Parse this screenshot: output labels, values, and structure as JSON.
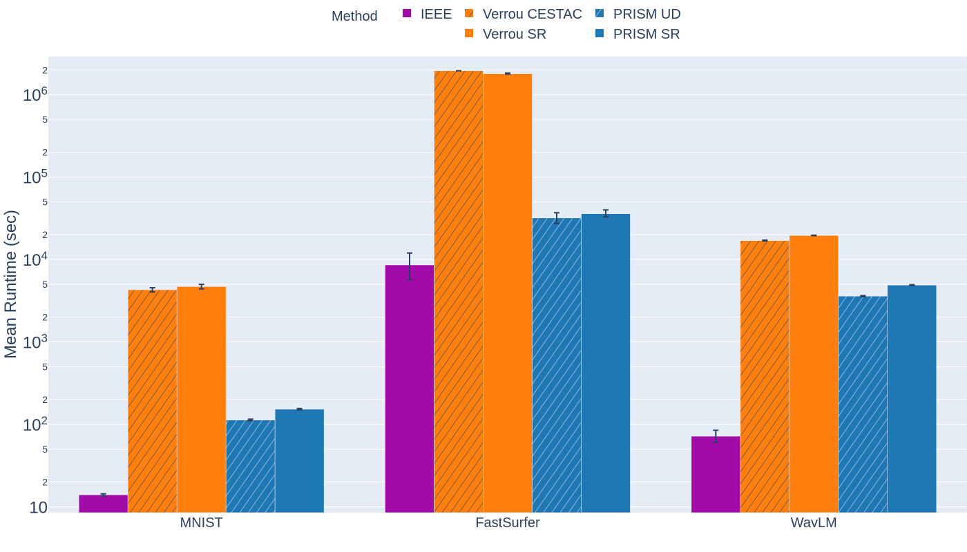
{
  "chart_data": {
    "type": "bar",
    "log_y": true,
    "ylabel": "Mean Runtime (sec)",
    "xlabel": "",
    "title": "",
    "categories": [
      "MNIST",
      "FastSurfer",
      "WavLM"
    ],
    "ylim": [
      8.5,
      2900000
    ],
    "legend": {
      "title": "Method",
      "placement": "top-center",
      "rows": [
        [
          "IEEE",
          "Verrou CESTAC",
          "PRISM UD"
        ],
        [
          "",
          "Verrou SR",
          "PRISM SR"
        ]
      ]
    },
    "series": [
      {
        "name": "IEEE",
        "color": "#a20ba8",
        "hatched": false,
        "values": [
          14,
          8600,
          72
        ],
        "err_low": [
          13.6,
          5700,
          61
        ],
        "err_high": [
          14.4,
          12000,
          85
        ]
      },
      {
        "name": "Verrou CESTAC",
        "color": "#ff7f0e",
        "hatched": true,
        "values": [
          4300,
          1950000,
          17000
        ],
        "err_low": [
          4050,
          1950000,
          16800
        ],
        "err_high": [
          4550,
          1955000,
          17200
        ]
      },
      {
        "name": "Verrou SR",
        "color": "#ff7f0e",
        "hatched": false,
        "values": [
          4700,
          1800000,
          19600
        ],
        "err_low": [
          4400,
          1780000,
          19500
        ],
        "err_high": [
          5000,
          1830000,
          19750
        ]
      },
      {
        "name": "PRISM UD",
        "color": "#1f77b4",
        "hatched": true,
        "values": [
          113,
          32000,
          3600
        ],
        "err_low": [
          111,
          27500,
          3550
        ],
        "err_high": [
          116,
          37000,
          3650
        ]
      },
      {
        "name": "PRISM SR",
        "color": "#1f77b4",
        "hatched": false,
        "values": [
          153,
          36000,
          4900
        ],
        "err_low": [
          150,
          33000,
          4850
        ],
        "err_high": [
          156,
          40000,
          4950
        ]
      }
    ],
    "y_major_ticks": [
      {
        "value": 10,
        "base": "10",
        "exp": ""
      },
      {
        "value": 100,
        "base": "10",
        "exp": "2"
      },
      {
        "value": 1000,
        "base": "10",
        "exp": "3"
      },
      {
        "value": 10000,
        "base": "10",
        "exp": "4"
      },
      {
        "value": 100000,
        "base": "10",
        "exp": "5"
      },
      {
        "value": 1000000,
        "base": "10",
        "exp": "6"
      }
    ],
    "y_minor_ticks": [
      {
        "value": 20,
        "label": "2"
      },
      {
        "value": 50,
        "label": "5"
      },
      {
        "value": 200,
        "label": "2"
      },
      {
        "value": 500,
        "label": "5"
      },
      {
        "value": 2000,
        "label": "2"
      },
      {
        "value": 5000,
        "label": "5"
      },
      {
        "value": 20000,
        "label": "2"
      },
      {
        "value": 50000,
        "label": "5"
      },
      {
        "value": 200000,
        "label": "2"
      },
      {
        "value": 500000,
        "label": "5"
      },
      {
        "value": 2000000,
        "label": "2"
      }
    ],
    "grid": true,
    "colors": {
      "plot_bg": "#e5ecf6",
      "grid": "#ffffff",
      "text": "#2a3f5f",
      "error_bar": "#2a3f5f"
    }
  }
}
